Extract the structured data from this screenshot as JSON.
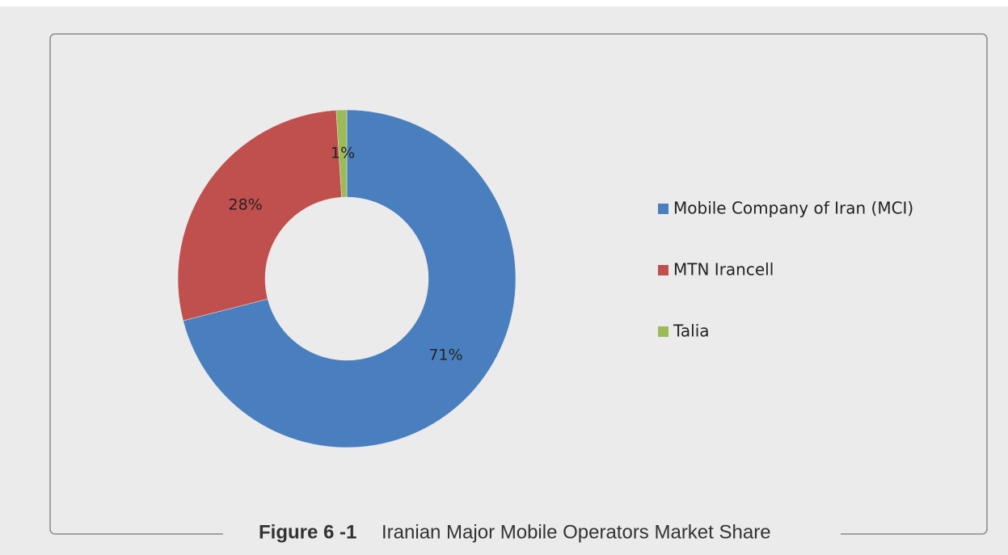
{
  "chart_data": {
    "type": "pie",
    "donut": true,
    "categories": [
      "Mobile Company of Iran (MCI)",
      "MTN Irancell",
      "Talia"
    ],
    "values": [
      71,
      28,
      1
    ],
    "value_labels": [
      "71%",
      "28%",
      "1%"
    ],
    "colors": [
      "#4a7fbf",
      "#c0504d",
      "#9bbb59"
    ],
    "legend": "right",
    "caption": {
      "number": "Figure 6 -1",
      "text": "Iranian Major Mobile Operators Market Share"
    }
  }
}
